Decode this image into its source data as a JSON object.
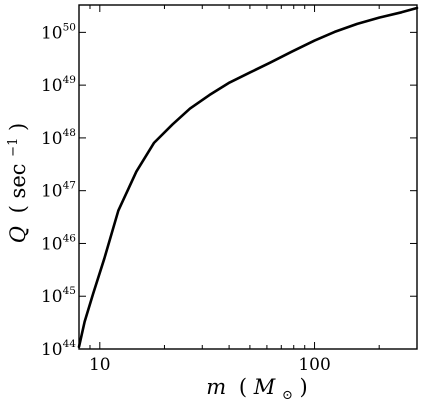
{
  "chart_data": {
    "type": "line",
    "x_scale": "log",
    "y_scale": "log",
    "xlim": [
      8,
      300
    ],
    "ylim": [
      1e+44,
      3.3e+50
    ],
    "xlabel": {
      "var": "m",
      "open": "(",
      "unit": "M",
      "sub": "⊙",
      "close": ")"
    },
    "ylabel": {
      "var": "Q",
      "open": "(",
      "unit": "sec",
      "sup": "−1",
      "close": ")"
    },
    "x_ticks": [
      {
        "value": 10,
        "label": "10"
      },
      {
        "value": 100,
        "label": "100"
      }
    ],
    "y_ticks": [
      {
        "value": 1e+44,
        "base": "10",
        "exp": "44"
      },
      {
        "value": 1e+45,
        "base": "10",
        "exp": "45"
      },
      {
        "value": 1e+46,
        "base": "10",
        "exp": "46"
      },
      {
        "value": 1e+47,
        "base": "10",
        "exp": "47"
      },
      {
        "value": 1e+48,
        "base": "10",
        "exp": "48"
      },
      {
        "value": 1e+49,
        "base": "10",
        "exp": "49"
      },
      {
        "value": 1e+50,
        "base": "10",
        "exp": "50"
      }
    ],
    "grid": false,
    "legend": "none",
    "line_color": "#000000",
    "series": [
      {
        "x": [
          8,
          8.5,
          9.3,
          10.5,
          12.2,
          14.8,
          17.9,
          21.8,
          26.3,
          32.4,
          40.2,
          50.2,
          61.9,
          78.3,
          100,
          124,
          158,
          200,
          254,
          300
        ],
        "y": [
          1.1e+44,
          3.3e+44,
          1.1e+45,
          5.2e+45,
          4.2e+46,
          2.3e+47,
          8.1e+47,
          1.8e+48,
          3.6e+48,
          6.5e+48,
          1.12e+49,
          1.75e+49,
          2.65e+49,
          4.3e+49,
          7e+49,
          1.02e+50,
          1.45e+50,
          1.9e+50,
          2.4e+50,
          2.9e+50
        ]
      }
    ]
  }
}
